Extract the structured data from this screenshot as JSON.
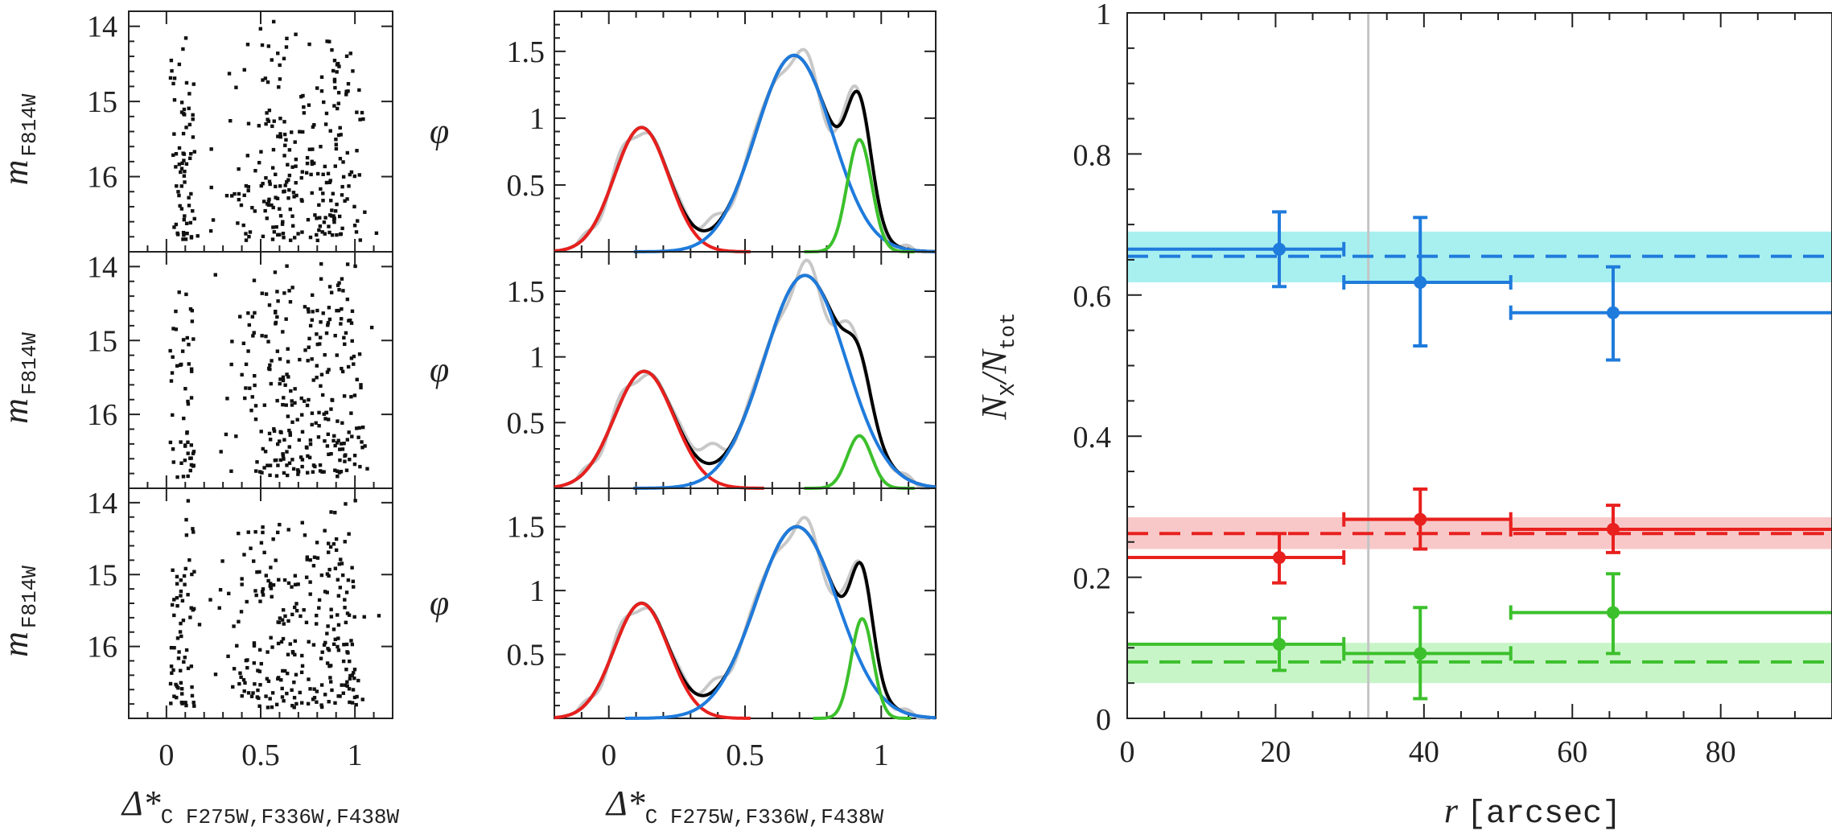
{
  "chart_data": [
    {
      "type": "scatter",
      "panel": "left-column",
      "subpanels": 3,
      "ylabel": "m",
      "ylabel_sub": "F814W",
      "xlabel": "Δ*",
      "xlabel_sub": "C F275W,F336W,F438W",
      "xlim": [
        -0.2,
        1.2
      ],
      "ylim": [
        17.0,
        13.8
      ],
      "x_ticks": [
        "0",
        "0.5",
        "1"
      ],
      "x_tick_values": [
        0,
        0.5,
        1
      ],
      "y_ticks": [
        "14",
        "15",
        "16"
      ],
      "y_tick_values": [
        14,
        15,
        16
      ],
      "point_color": "#111111",
      "points_per_panel": 330,
      "population_centers": [
        0.02,
        0.6,
        0.92
      ]
    },
    {
      "type": "line",
      "panel": "middle-column",
      "subpanels": 3,
      "ylabel": "φ",
      "xlabel": "Δ*",
      "xlabel_sub": "C F275W,F336W,F438W",
      "xlim": [
        -0.2,
        1.2
      ],
      "ylim": [
        0,
        1.8
      ],
      "x_ticks": [
        "0",
        "0.5",
        "1"
      ],
      "x_tick_values": [
        0,
        0.5,
        1
      ],
      "y_ticks": [
        "0.5",
        "1",
        "1.5"
      ],
      "y_tick_values": [
        0.5,
        1,
        1.5
      ],
      "components": [
        {
          "name": "red",
          "color": "#e8201e"
        },
        {
          "name": "blue",
          "color": "#1f7bdc"
        },
        {
          "name": "green",
          "color": "#3cc02c"
        },
        {
          "name": "total",
          "color": "#000000"
        },
        {
          "name": "observed",
          "color": "#c8c8c8"
        }
      ],
      "fits": [
        {
          "red": {
            "a": 0.93,
            "mu": 0.12,
            "s": 0.1
          },
          "blue": {
            "a": 1.47,
            "mu": 0.68,
            "s": 0.14
          },
          "green": {
            "a": 0.84,
            "mu": 0.92,
            "s": 0.045
          }
        },
        {
          "red": {
            "a": 0.89,
            "mu": 0.13,
            "s": 0.11
          },
          "blue": {
            "a": 1.62,
            "mu": 0.72,
            "s": 0.15
          },
          "green": {
            "a": 0.4,
            "mu": 0.92,
            "s": 0.045
          }
        },
        {
          "red": {
            "a": 0.9,
            "mu": 0.12,
            "s": 0.1
          },
          "blue": {
            "a": 1.5,
            "mu": 0.69,
            "s": 0.15
          },
          "green": {
            "a": 0.78,
            "mu": 0.93,
            "s": 0.04
          }
        }
      ]
    },
    {
      "type": "scatter",
      "panel": "right",
      "ylabel": "N",
      "ylabel_sub1": "X",
      "ylabel_mid": "/N",
      "ylabel_sub2": "tot",
      "xlabel": "r",
      "xlabel_unit": "[arcsec]",
      "xlim": [
        0,
        95
      ],
      "ylim": [
        0,
        1
      ],
      "x_ticks": [
        "0",
        "20",
        "40",
        "60",
        "80"
      ],
      "x_tick_values": [
        0,
        20,
        40,
        60,
        80
      ],
      "y_ticks": [
        "0",
        "0.2",
        "0.4",
        "0.6",
        "0.8",
        "1"
      ],
      "y_tick_values": [
        0,
        0.2,
        0.4,
        0.6,
        0.8,
        1
      ],
      "vertical_line_r": 32.5,
      "series": [
        {
          "name": "blue",
          "color": "#1f7bdc",
          "band_color": "#a8f0f0",
          "mean": 0.655,
          "band": [
            0.618,
            0.69
          ],
          "points": [
            {
              "r": 20.5,
              "y": 0.665,
              "x_lo": 0,
              "x_hi": 29.2,
              "y_lo": 0.612,
              "y_hi": 0.718
            },
            {
              "r": 39.5,
              "y": 0.618,
              "x_lo": 29.2,
              "x_hi": 51.7,
              "y_lo": 0.528,
              "y_hi": 0.71
            },
            {
              "r": 65.5,
              "y": 0.575,
              "x_lo": 51.7,
              "x_hi": 95,
              "y_lo": 0.508,
              "y_hi": 0.64
            }
          ]
        },
        {
          "name": "red",
          "color": "#e8201e",
          "band_color": "#f8c8c8",
          "mean": 0.262,
          "band": [
            0.24,
            0.285
          ],
          "points": [
            {
              "r": 20.5,
              "y": 0.228,
              "x_lo": 0,
              "x_hi": 29.2,
              "y_lo": 0.192,
              "y_hi": 0.262
            },
            {
              "r": 39.5,
              "y": 0.282,
              "x_lo": 29.2,
              "x_hi": 51.7,
              "y_lo": 0.24,
              "y_hi": 0.325
            },
            {
              "r": 65.5,
              "y": 0.268,
              "x_lo": 51.7,
              "x_hi": 95,
              "y_lo": 0.235,
              "y_hi": 0.302
            }
          ]
        },
        {
          "name": "green",
          "color": "#3cc02c",
          "band_color": "#c8f5c8",
          "mean": 0.08,
          "band": [
            0.05,
            0.107
          ],
          "points": [
            {
              "r": 20.5,
              "y": 0.105,
              "x_lo": 0,
              "x_hi": 29.2,
              "y_lo": 0.068,
              "y_hi": 0.142
            },
            {
              "r": 39.5,
              "y": 0.092,
              "x_lo": 29.2,
              "x_hi": 51.7,
              "y_lo": 0.028,
              "y_hi": 0.157
            },
            {
              "r": 65.5,
              "y": 0.15,
              "x_lo": 51.7,
              "x_hi": 95,
              "y_lo": 0.092,
              "y_hi": 0.205
            }
          ]
        }
      ]
    }
  ]
}
